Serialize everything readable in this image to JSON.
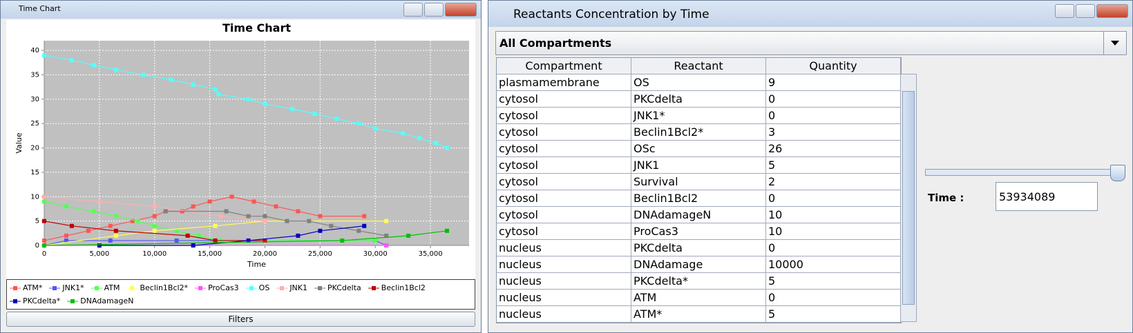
{
  "left_window": {
    "title": "Time Chart",
    "filters_button": "Filters"
  },
  "chart_data": {
    "type": "line",
    "title": "Time Chart",
    "x_label": "Time",
    "y_label": "Value",
    "xlim": [
      0,
      38500
    ],
    "ylim": [
      0,
      42
    ],
    "xticks": [
      0,
      {
        "value": 5000,
        "label": "5,000"
      },
      {
        "value": 10000,
        "label": "10,000"
      },
      {
        "value": 15000,
        "label": "15,000"
      },
      {
        "value": 20000,
        "label": "20,000"
      },
      {
        "value": 25000,
        "label": "25,000"
      },
      {
        "value": 30000,
        "label": "30,000"
      },
      {
        "value": 35000,
        "label": "35,000"
      }
    ],
    "yticks": [
      0,
      5,
      10,
      15,
      20,
      25,
      30,
      35,
      40
    ],
    "grid": true,
    "series": [
      {
        "name": "ATM*",
        "color": "#ff5555",
        "x": [
          0,
          2000,
          4000,
          6000,
          8000,
          10000,
          11000,
          12500,
          13500,
          15000,
          17000,
          19000,
          21000,
          23000,
          25000,
          29000
        ],
        "values": [
          1,
          2,
          3,
          4,
          5,
          6,
          7,
          7,
          8,
          9,
          10,
          9,
          8,
          7,
          6,
          6
        ]
      },
      {
        "name": "JNK1*",
        "color": "#5555ff",
        "x": [
          0,
          2000,
          6000,
          12000,
          15500,
          30000,
          31000
        ],
        "values": [
          0,
          1,
          1,
          1,
          1,
          1,
          0
        ]
      },
      {
        "name": "ATM",
        "color": "#55ff55",
        "x": [
          0,
          2000,
          4500,
          6500,
          8500,
          10000,
          12000,
          14000,
          16000,
          30000
        ],
        "values": [
          9,
          8,
          7,
          6,
          5,
          4,
          3,
          2,
          1,
          1
        ]
      },
      {
        "name": "Beclin1Bcl2*",
        "color": "#ffff55",
        "x": [
          0,
          6500,
          10000,
          15500,
          20000,
          31000
        ],
        "values": [
          0,
          2,
          3,
          4,
          5,
          5
        ]
      },
      {
        "name": "ProCas3",
        "color": "#ff55ff",
        "x": [
          0,
          31000
        ],
        "values": [
          0,
          0
        ]
      },
      {
        "name": "OS",
        "color": "#55ffff",
        "x": [
          0,
          2500,
          4500,
          6500,
          9000,
          11500,
          13500,
          15500,
          15800,
          18500,
          20000,
          22500,
          24500,
          26500,
          28500,
          30000,
          32500,
          34000,
          35500,
          36500
        ],
        "values": [
          39,
          38,
          37,
          36,
          35,
          34,
          33,
          32,
          31,
          30,
          29,
          28,
          27,
          26,
          25,
          24,
          23,
          22,
          21,
          20
        ]
      },
      {
        "name": "JNK1",
        "color": "#ffafaf",
        "x": [
          0,
          5000,
          10000,
          16000,
          20000
        ],
        "values": [
          10,
          9,
          8,
          6,
          5
        ]
      },
      {
        "name": "PKCdelta",
        "color": "#808080",
        "x": [
          11000,
          16500,
          18500,
          20000,
          22000,
          24000,
          26000,
          28500,
          31000
        ],
        "values": [
          7,
          7,
          6,
          6,
          5,
          5,
          4,
          3,
          2
        ]
      },
      {
        "name": "Beclin1Bcl2",
        "color": "#c00000",
        "x": [
          0,
          2500,
          6500,
          13000,
          15500,
          20000
        ],
        "values": [
          5,
          4,
          3,
          2,
          1,
          1
        ]
      },
      {
        "name": "PKCdelta*",
        "color": "#0000c0",
        "x": [
          5000,
          13500,
          18500,
          23000,
          25000,
          29000
        ],
        "values": [
          0,
          0,
          1,
          2,
          3,
          4
        ]
      },
      {
        "name": "DNAdamageN",
        "color": "#00c000",
        "x": [
          0,
          27000,
          33000,
          36500
        ],
        "values": [
          0,
          1,
          2,
          3
        ]
      }
    ]
  },
  "right_window": {
    "title": "Reactants Concentration by Time",
    "dropdown": "All Compartments",
    "time_label": "Time :",
    "time_value": "53934089",
    "table": {
      "headers": [
        "Compartment",
        "Reactant",
        "Quantity"
      ],
      "rows": [
        [
          "plasmamembrane",
          "OS",
          9
        ],
        [
          "cytosol",
          "PKCdelta",
          0
        ],
        [
          "cytosol",
          "JNK1*",
          0
        ],
        [
          "cytosol",
          "Beclin1Bcl2*",
          3
        ],
        [
          "cytosol",
          "OSc",
          26
        ],
        [
          "cytosol",
          "JNK1",
          5
        ],
        [
          "cytosol",
          "Survival",
          2
        ],
        [
          "cytosol",
          "Beclin1Bcl2",
          0
        ],
        [
          "cytosol",
          "DNAdamageN",
          10
        ],
        [
          "cytosol",
          "ProCas3",
          10
        ],
        [
          "nucleus",
          "PKCdelta",
          0
        ],
        [
          "nucleus",
          "DNAdamage",
          10000
        ],
        [
          "nucleus",
          "PKCdelta*",
          5
        ],
        [
          "nucleus",
          "ATM",
          0
        ],
        [
          "nucleus",
          "ATM*",
          5
        ]
      ]
    }
  }
}
